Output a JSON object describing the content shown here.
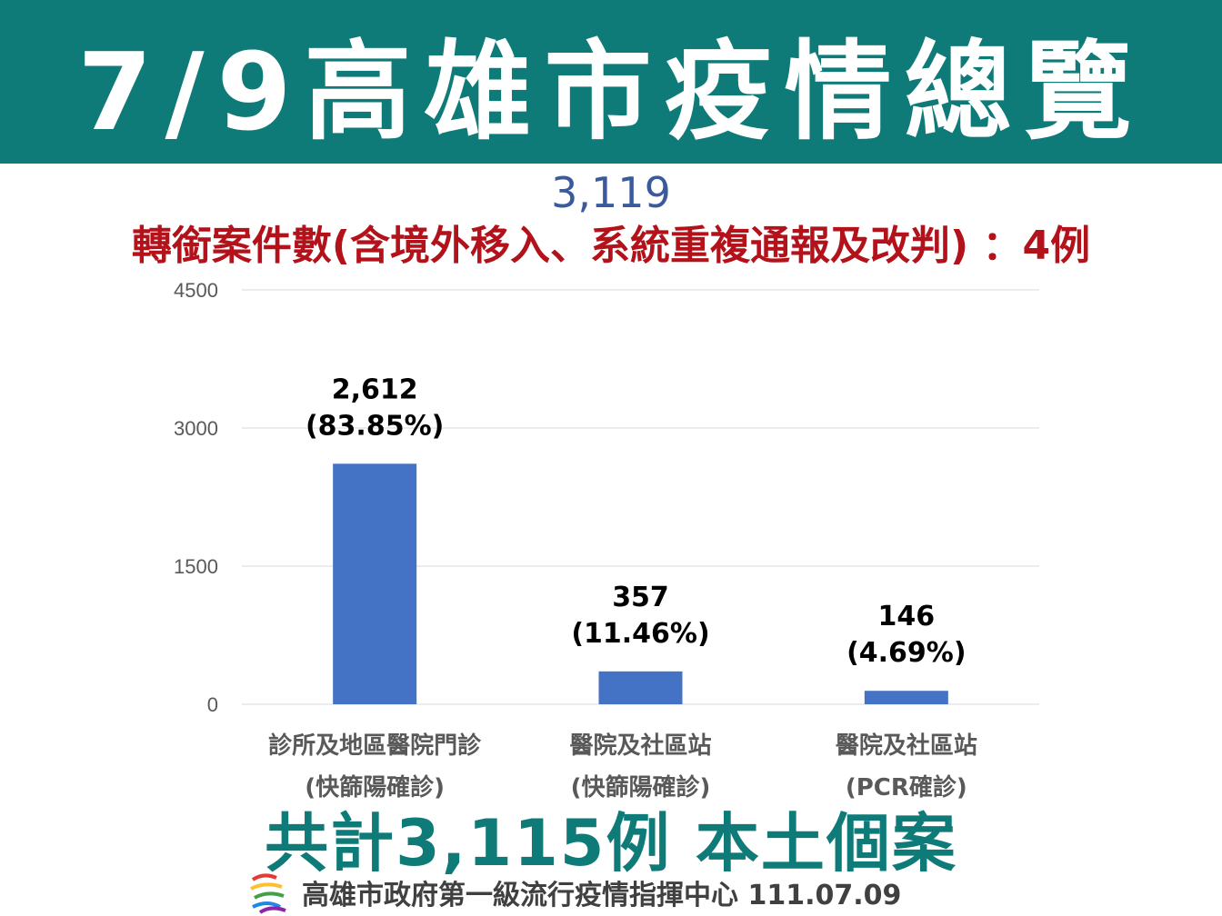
{
  "header": {
    "title": "7/9高雄市疫情總覽"
  },
  "total_reported": "3,119",
  "transfer_note": "轉銜案件數(含境外移入、系統重複通報及改判) ：4例",
  "chart_data": {
    "type": "bar",
    "categories": [
      [
        "診所及地區醫院門診",
        "(快篩陽確診)"
      ],
      [
        "醫院及社區站",
        "(快篩陽確診)"
      ],
      [
        "醫院及社區站",
        "(PCR確診)"
      ]
    ],
    "values": [
      2612,
      357,
      146
    ],
    "data_labels": [
      [
        "2,612",
        "(83.85%)"
      ],
      [
        "357",
        "(11.46%)"
      ],
      [
        "146",
        "(4.69%)"
      ]
    ],
    "yticks": [
      "0",
      "1500",
      "3000",
      "4500"
    ],
    "ylim": [
      0,
      4500
    ],
    "grid": true,
    "bar_color": "#4472c4"
  },
  "summary": "共計3,115例 本土個案",
  "footer": {
    "text": "高雄市政府第一級流行疫情指揮中心 111.07.09",
    "logo_icon": "kaohsiung-logo-icon"
  },
  "colors": {
    "header_bg": "#0f7b78",
    "note": "#b3121b",
    "total": "#3a5a9c",
    "summary": "#0f7b78"
  }
}
